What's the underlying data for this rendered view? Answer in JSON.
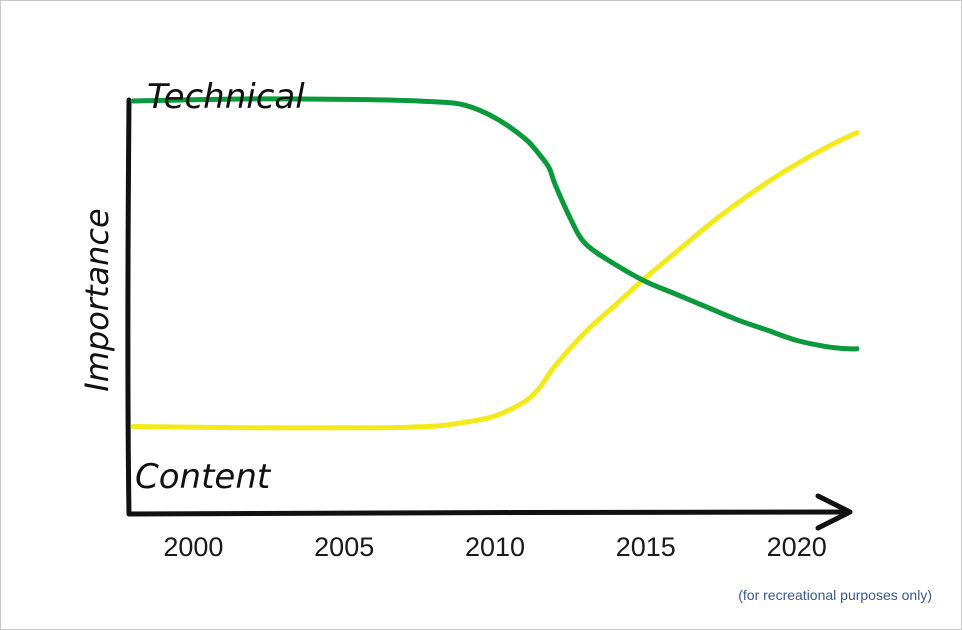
{
  "chart_data": {
    "type": "line",
    "ylabel": "Importance",
    "xlabel": "",
    "xlim": [
      1997.8,
      2022
    ],
    "ylim": [
      0,
      1
    ],
    "x_ticks": [
      "2000",
      "2005",
      "2010",
      "2015",
      "2020"
    ],
    "x_tick_values": [
      2000,
      2005,
      2010,
      2015,
      2020
    ],
    "grid": false,
    "series": [
      {
        "name": "Technical",
        "color": "#0a9a3c",
        "x": [
          1998,
          2002,
          2006,
          2008,
          2009,
          2010,
          2011,
          2011.5,
          2011.8,
          2012,
          2012.5,
          2013,
          2014,
          2015,
          2016,
          2017,
          2018,
          2019,
          2020,
          2021,
          2021.7,
          2022
        ],
        "y": [
          0.95,
          0.955,
          0.953,
          0.948,
          0.94,
          0.91,
          0.86,
          0.82,
          0.79,
          0.75,
          0.67,
          0.61,
          0.56,
          0.52,
          0.49,
          0.46,
          0.43,
          0.405,
          0.38,
          0.365,
          0.36,
          0.36
        ]
      },
      {
        "name": "Content",
        "color": "#f3ea1b",
        "x": [
          1998,
          2002,
          2006,
          2008,
          2009,
          2010,
          2011,
          2011.5,
          2012,
          2013,
          2014,
          2015,
          2016,
          2017,
          2018,
          2019,
          2020,
          2021,
          2022
        ],
        "y": [
          0.175,
          0.172,
          0.172,
          0.176,
          0.185,
          0.2,
          0.235,
          0.27,
          0.32,
          0.4,
          0.465,
          0.53,
          0.59,
          0.65,
          0.705,
          0.755,
          0.8,
          0.84,
          0.875
        ]
      }
    ]
  },
  "footnote": "(for recreational purposes only)"
}
